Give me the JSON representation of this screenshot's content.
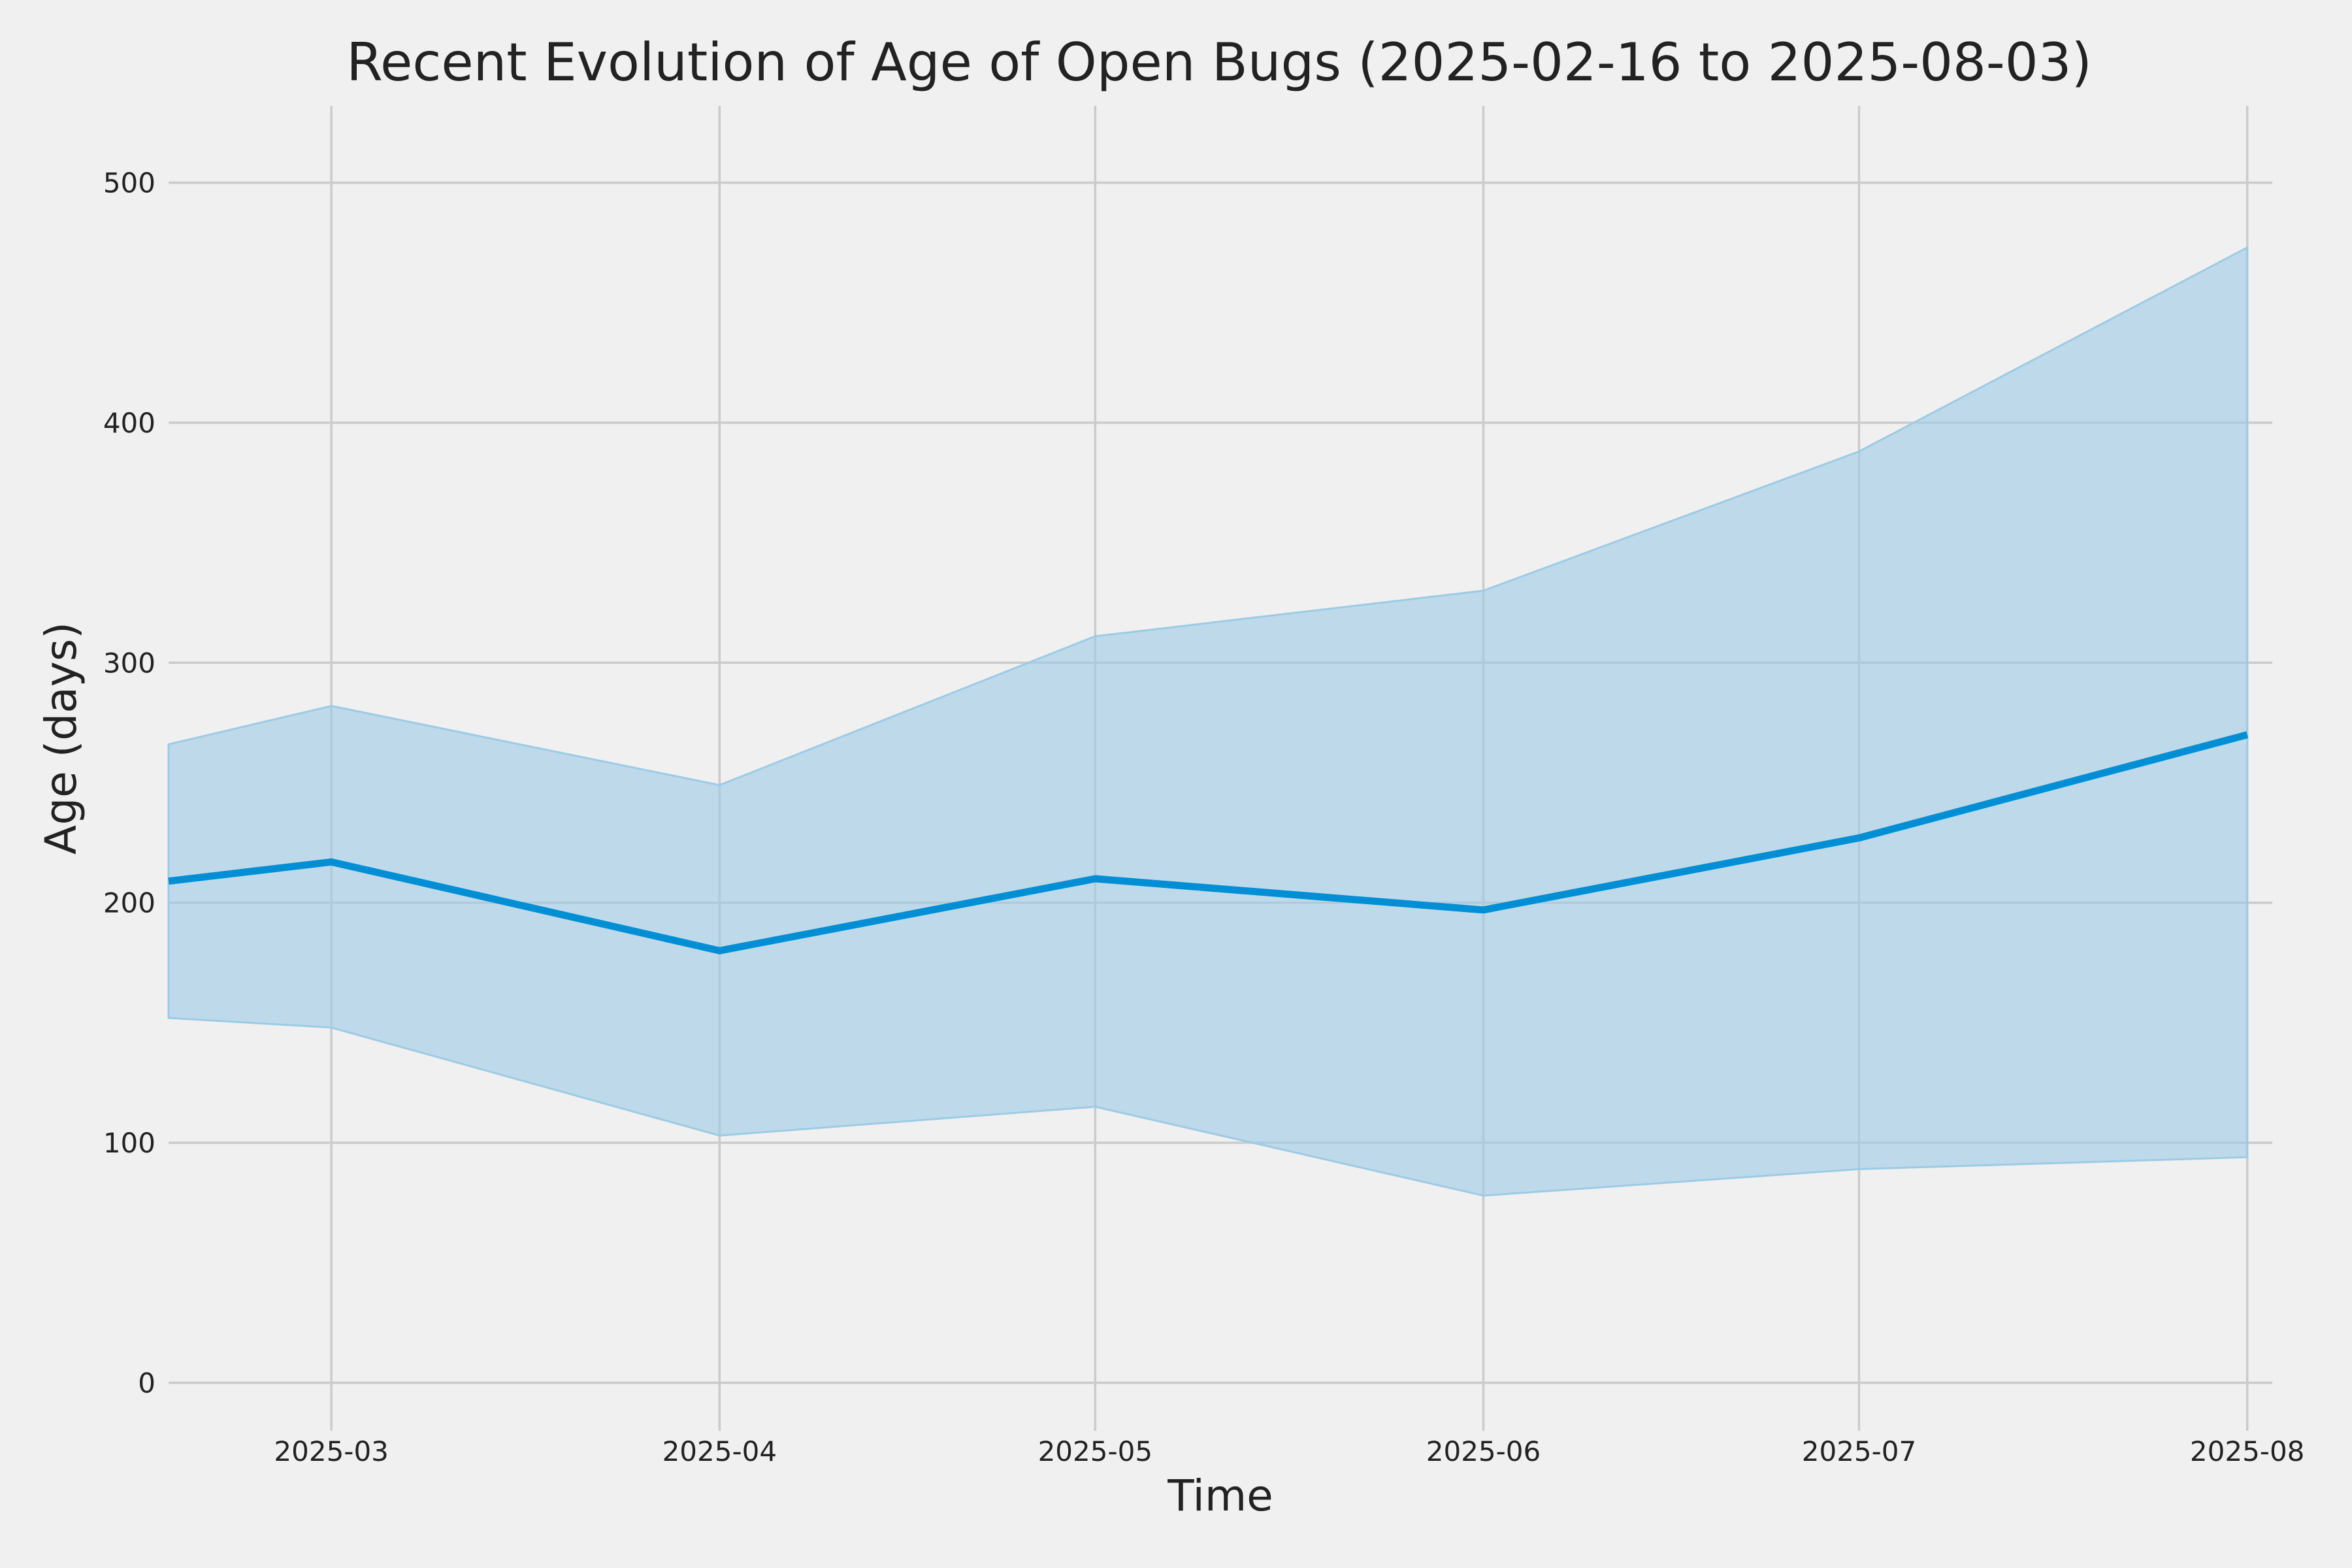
{
  "chart_data": {
    "type": "line",
    "title": "Recent Evolution of Age of Open Bugs (2025-02-16 to 2025-08-03)",
    "xlabel": "Time",
    "ylabel": "Age (days)",
    "x": [
      "2025-02-16",
      "2025-03-01",
      "2025-04-01",
      "2025-05-01",
      "2025-06-01",
      "2025-07-01",
      "2025-08-01"
    ],
    "series": [
      {
        "values": [
          209,
          217,
          180,
          210,
          197,
          227,
          270
        ],
        "lower": [
          152,
          148,
          103,
          115,
          78,
          89,
          94
        ],
        "upper": [
          266,
          282,
          249,
          311,
          330,
          388,
          473
        ]
      }
    ],
    "xlim": [
      "2025-02-16",
      "2025-08-03"
    ],
    "ylim": [
      -20,
      532
    ],
    "xticks": [
      "2025-03",
      "2025-04",
      "2025-05",
      "2025-06",
      "2025-07",
      "2025-08"
    ],
    "yticks": [
      0,
      100,
      200,
      300,
      400,
      500
    ],
    "grid": true,
    "colors": {
      "line": "#008fd5",
      "band": "#9ccbe6",
      "background": "#f0f0f0"
    }
  }
}
